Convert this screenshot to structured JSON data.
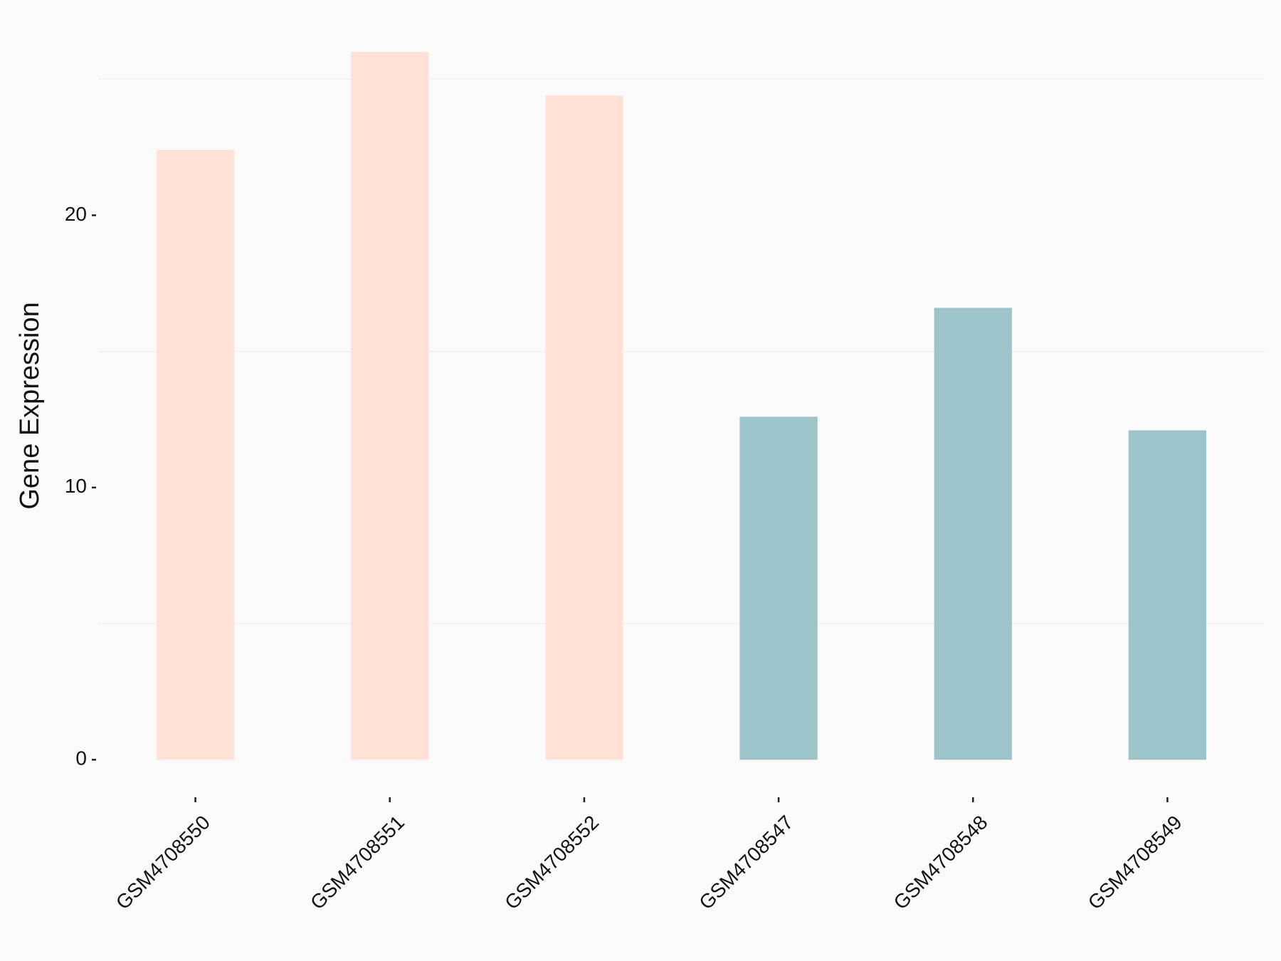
{
  "chart_data": {
    "type": "bar",
    "y_label": "Gene Expression",
    "categories": [
      "GSM4708550",
      "GSM4708551",
      "GSM4708552",
      "GSM4708547",
      "GSM4708548",
      "GSM4708549"
    ],
    "values": [
      22.4,
      26.0,
      24.4,
      12.6,
      16.6,
      12.1
    ],
    "colors": [
      "#ffe1d6",
      "#ffe1d6",
      "#ffe1d6",
      "#9dc4c8",
      "#9dc4c8",
      "#9dc4c8"
    ],
    "ylim": [
      -1.3,
      26.6
    ],
    "yticks": [
      0,
      10,
      20
    ],
    "minor_gridlines": [
      5,
      15,
      25
    ],
    "grid": true
  }
}
